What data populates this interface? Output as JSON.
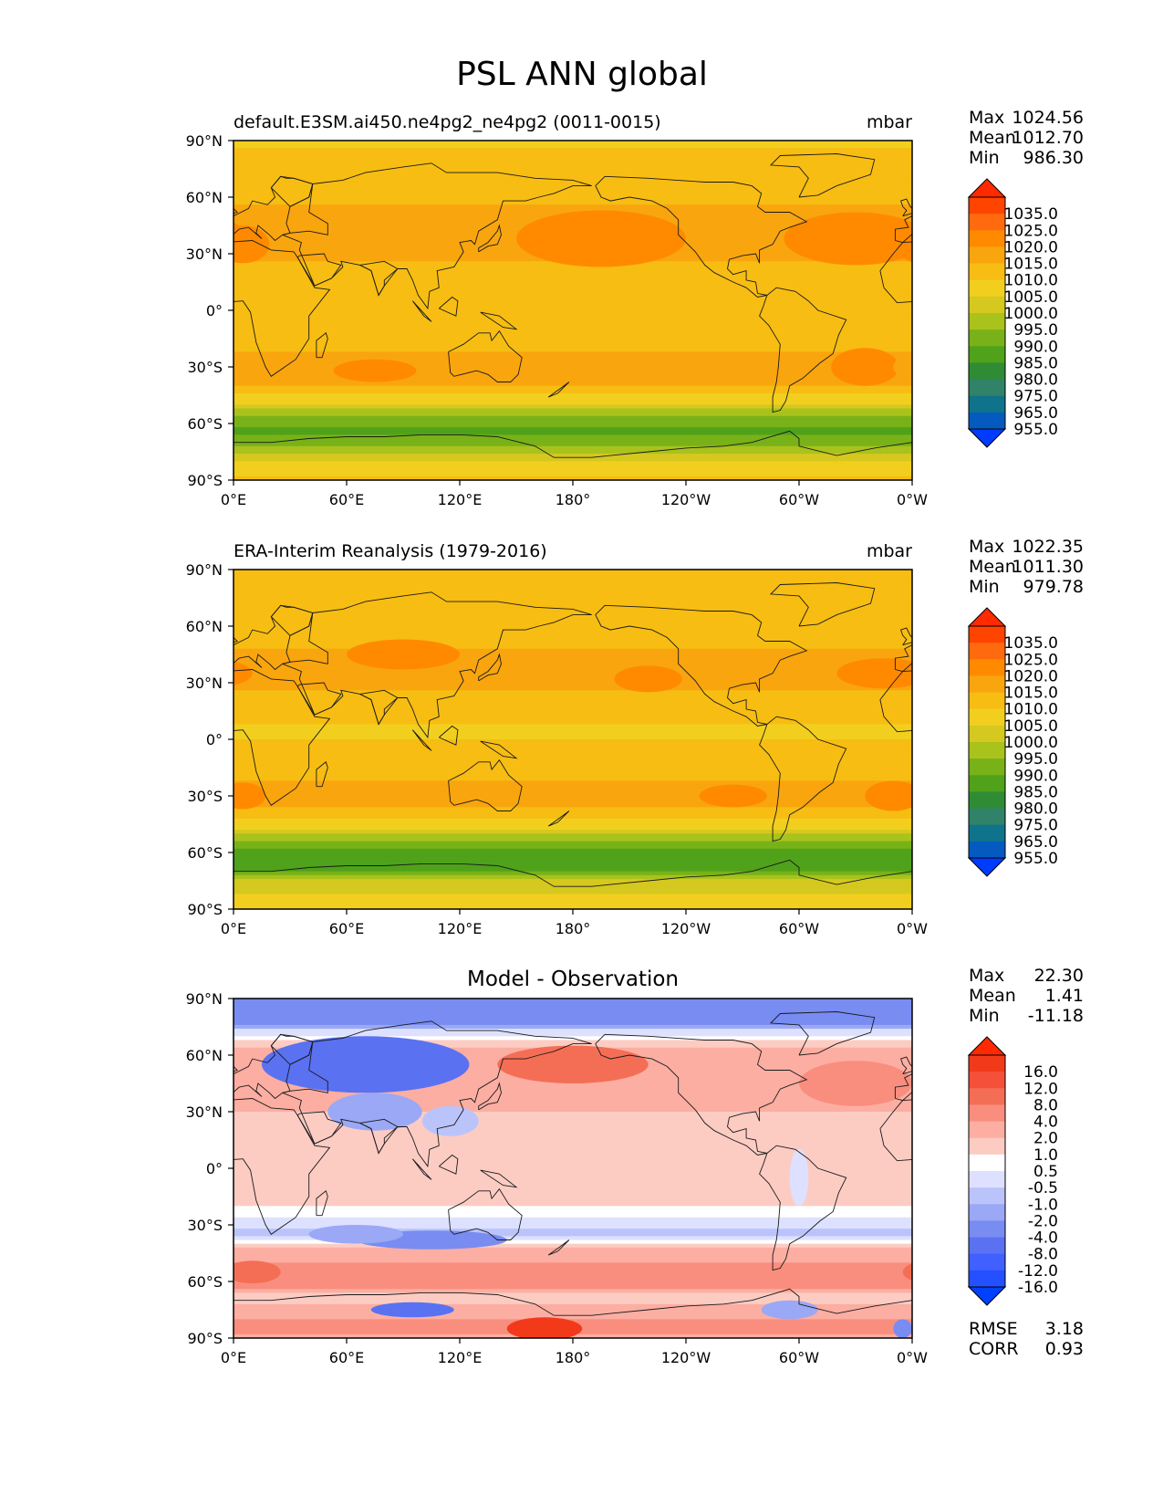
{
  "figure": {
    "title": "PSL ANN global"
  },
  "axes": {
    "lat_ticks": [
      "90°N",
      "60°N",
      "30°N",
      "0°",
      "30°S",
      "60°S",
      "90°S"
    ],
    "lon_ticks": [
      "0°E",
      "60°E",
      "120°E",
      "180°",
      "120°W",
      "60°W",
      "0°W"
    ]
  },
  "chart_data": [
    {
      "type": "heatmap",
      "title": "default.E3SM.ai450.ne4pg2_ne4pg2 (0011-0015)",
      "units": "mbar",
      "stats": [
        {
          "label": "Max",
          "value": "1024.56"
        },
        {
          "label": "Mean",
          "value": "1012.70"
        },
        {
          "label": "Min",
          "value": "986.30"
        }
      ],
      "colorbar": {
        "labels": [
          "1035.0",
          "1025.0",
          "1020.0",
          "1015.0",
          "1010.0",
          "1005.0",
          "1000.0",
          "995.0",
          "990.0",
          "985.0",
          "980.0",
          "975.0",
          "965.0",
          "955.0"
        ],
        "colors": [
          "#ff2a00",
          "#ff4400",
          "#ff6a0f",
          "#ff8a00",
          "#f9a50e",
          "#f7bd12",
          "#f2cf1e",
          "#d5c81f",
          "#a9c21c",
          "#78b218",
          "#4fa21a",
          "#2f8c35",
          "#308268",
          "#10738c",
          "#055ac0",
          "#003cff"
        ]
      },
      "bands": [
        {
          "lat": 90,
          "value": 1008
        },
        {
          "lat": 80,
          "value": 1013
        },
        {
          "lat": 70,
          "value": 1015
        },
        {
          "lat": 60,
          "value": 1014
        },
        {
          "lat": 45,
          "value": 1017
        },
        {
          "lat": 30,
          "value": 1016
        },
        {
          "lat": 15,
          "value": 1011
        },
        {
          "lat": 0,
          "value": 1010
        },
        {
          "lat": -15,
          "value": 1013
        },
        {
          "lat": -30,
          "value": 1017
        },
        {
          "lat": -40,
          "value": 1015
        },
        {
          "lat": -50,
          "value": 1004
        },
        {
          "lat": -55,
          "value": 996
        },
        {
          "lat": -60,
          "value": 991
        },
        {
          "lat": -65,
          "value": 989
        },
        {
          "lat": -72,
          "value": 994
        },
        {
          "lat": -80,
          "value": 1005
        },
        {
          "lat": -90,
          "value": 1012
        }
      ],
      "highs": [
        {
          "lon": 195,
          "lat": 38,
          "value": 1022,
          "rlon": 45,
          "rlat": 15
        },
        {
          "lon": 330,
          "lat": 38,
          "value": 1021,
          "rlon": 38,
          "rlat": 14
        },
        {
          "lon": 5,
          "lat": 35,
          "value": 1020,
          "rlon": 14,
          "rlat": 10
        },
        {
          "lon": 90,
          "lat": 38,
          "value": 1019,
          "rlon": 14,
          "rlat": 6
        },
        {
          "lon": 75,
          "lat": -32,
          "value": 1020,
          "rlon": 22,
          "rlat": 6
        },
        {
          "lon": 335,
          "lat": -30,
          "value": 1020,
          "rlon": 18,
          "rlat": 10
        },
        {
          "lon": 5,
          "lat": -30,
          "value": 1019,
          "rlon": 15,
          "rlat": 8
        },
        {
          "lon": 265,
          "lat": -30,
          "value": 1018,
          "rlon": 20,
          "rlat": 5
        }
      ]
    },
    {
      "type": "heatmap",
      "title": "ERA-Interim Reanalysis (1979-2016)",
      "units": "mbar",
      "stats": [
        {
          "label": "Max",
          "value": "1022.35"
        },
        {
          "label": "Mean",
          "value": "1011.30"
        },
        {
          "label": "Min",
          "value": "979.78"
        }
      ],
      "colorbar": {
        "labels": [
          "1035.0",
          "1025.0",
          "1020.0",
          "1015.0",
          "1010.0",
          "1005.0",
          "1000.0",
          "995.0",
          "990.0",
          "985.0",
          "980.0",
          "975.0",
          "965.0",
          "955.0"
        ],
        "colors": [
          "#ff2a00",
          "#ff4400",
          "#ff6a0f",
          "#ff8a00",
          "#f9a50e",
          "#f7bd12",
          "#f2cf1e",
          "#d5c81f",
          "#a9c21c",
          "#78b218",
          "#4fa21a",
          "#2f8c35",
          "#308268",
          "#10738c",
          "#055ac0",
          "#003cff"
        ]
      },
      "bands": [
        {
          "lat": 90,
          "value": 1012
        },
        {
          "lat": 75,
          "value": 1013
        },
        {
          "lat": 60,
          "value": 1011
        },
        {
          "lat": 45,
          "value": 1016
        },
        {
          "lat": 30,
          "value": 1016
        },
        {
          "lat": 15,
          "value": 1012
        },
        {
          "lat": 5,
          "value": 1009
        },
        {
          "lat": 0,
          "value": 1010
        },
        {
          "lat": -15,
          "value": 1013
        },
        {
          "lat": -30,
          "value": 1017
        },
        {
          "lat": -40,
          "value": 1013
        },
        {
          "lat": -48,
          "value": 1004
        },
        {
          "lat": -55,
          "value": 993
        },
        {
          "lat": -62,
          "value": 986
        },
        {
          "lat": -68,
          "value": 986
        },
        {
          "lat": -75,
          "value": 1000
        },
        {
          "lat": -85,
          "value": 1008
        },
        {
          "lat": -90,
          "value": 1010
        }
      ],
      "highs": [
        {
          "lon": 90,
          "lat": 45,
          "value": 1020,
          "rlon": 30,
          "rlat": 8
        },
        {
          "lon": 345,
          "lat": 35,
          "value": 1021,
          "rlon": 25,
          "rlat": 8
        },
        {
          "lon": 220,
          "lat": 32,
          "value": 1021,
          "rlon": 18,
          "rlat": 7
        },
        {
          "lon": 265,
          "lat": -30,
          "value": 1020,
          "rlon": 18,
          "rlat": 6
        },
        {
          "lon": 5,
          "lat": -30,
          "value": 1020,
          "rlon": 12,
          "rlat": 7
        },
        {
          "lon": 350,
          "lat": -30,
          "value": 1020,
          "rlon": 15,
          "rlat": 8
        },
        {
          "lon": 75,
          "lat": -30,
          "value": 1019,
          "rlon": 20,
          "rlat": 5
        }
      ]
    },
    {
      "type": "heatmap",
      "title": "Model - Observation",
      "units": "",
      "stats": [
        {
          "label": "Max",
          "value": "22.30"
        },
        {
          "label": "Mean",
          "value": "1.41"
        },
        {
          "label": "Min",
          "value": "-11.18"
        }
      ],
      "metrics": [
        {
          "label": "RMSE",
          "value": "3.18"
        },
        {
          "label": "CORR",
          "value": "0.93"
        }
      ],
      "colorbar": {
        "labels": [
          "16.0",
          "12.0",
          "8.0",
          "4.0",
          "2.0",
          "1.0",
          "0.5",
          "-0.5",
          "-1.0",
          "-2.0",
          "-4.0",
          "-8.0",
          "-12.0",
          "-16.0"
        ],
        "colors": [
          "#ff2a00",
          "#f23a1a",
          "#f5503a",
          "#f46e55",
          "#f98e7e",
          "#fcaea2",
          "#fcccc3",
          "#ffffff",
          "#dde1ff",
          "#bbc4fa",
          "#9aa8f5",
          "#788cf2",
          "#5a71f2",
          "#4060ff",
          "#2450ff",
          "#0040ff"
        ]
      },
      "bands": [
        {
          "lat": 90,
          "value": -4
        },
        {
          "lat": 80,
          "value": -4
        },
        {
          "lat": 72,
          "value": 0
        },
        {
          "lat": 60,
          "value": 3
        },
        {
          "lat": 45,
          "value": 3
        },
        {
          "lat": 30,
          "value": 2
        },
        {
          "lat": 15,
          "value": 1.5
        },
        {
          "lat": 0,
          "value": 1.5
        },
        {
          "lat": -15,
          "value": 1.5
        },
        {
          "lat": -25,
          "value": 0.5
        },
        {
          "lat": -35,
          "value": -1
        },
        {
          "lat": -45,
          "value": 3
        },
        {
          "lat": -55,
          "value": 5
        },
        {
          "lat": -62,
          "value": 6
        },
        {
          "lat": -68,
          "value": 1
        },
        {
          "lat": -75,
          "value": 3
        },
        {
          "lat": -85,
          "value": 5
        },
        {
          "lat": -90,
          "value": 3
        }
      ],
      "highs": [
        {
          "lon": 70,
          "lat": 55,
          "value": -5,
          "rlon": 55,
          "rlat": 15
        },
        {
          "lon": 75,
          "lat": 30,
          "value": -1.5,
          "rlon": 25,
          "rlat": 10
        },
        {
          "lon": 115,
          "lat": 25,
          "value": -0.8,
          "rlon": 15,
          "rlat": 8
        },
        {
          "lon": 105,
          "lat": -38,
          "value": -3,
          "rlon": 40,
          "rlat": 5
        },
        {
          "lon": 65,
          "lat": -35,
          "value": -1.5,
          "rlon": 25,
          "rlat": 5
        },
        {
          "lon": 95,
          "lat": -75,
          "value": -6,
          "rlon": 22,
          "rlat": 4
        },
        {
          "lon": 165,
          "lat": -85,
          "value": 16,
          "rlon": 20,
          "rlat": 6
        },
        {
          "lon": 10,
          "lat": -55,
          "value": 9,
          "rlon": 15,
          "rlat": 6
        },
        {
          "lon": 180,
          "lat": 55,
          "value": 9,
          "rlon": 40,
          "rlat": 10
        },
        {
          "lon": 330,
          "lat": 45,
          "value": 5,
          "rlon": 30,
          "rlat": 12
        },
        {
          "lon": 295,
          "lat": -75,
          "value": -2,
          "rlon": 15,
          "rlat": 5
        },
        {
          "lon": 355,
          "lat": -85,
          "value": -4,
          "rlon": 5,
          "rlat": 5
        },
        {
          "lon": 300,
          "lat": -5,
          "value": -0.3,
          "rlon": 5,
          "rlat": 15
        }
      ]
    }
  ]
}
